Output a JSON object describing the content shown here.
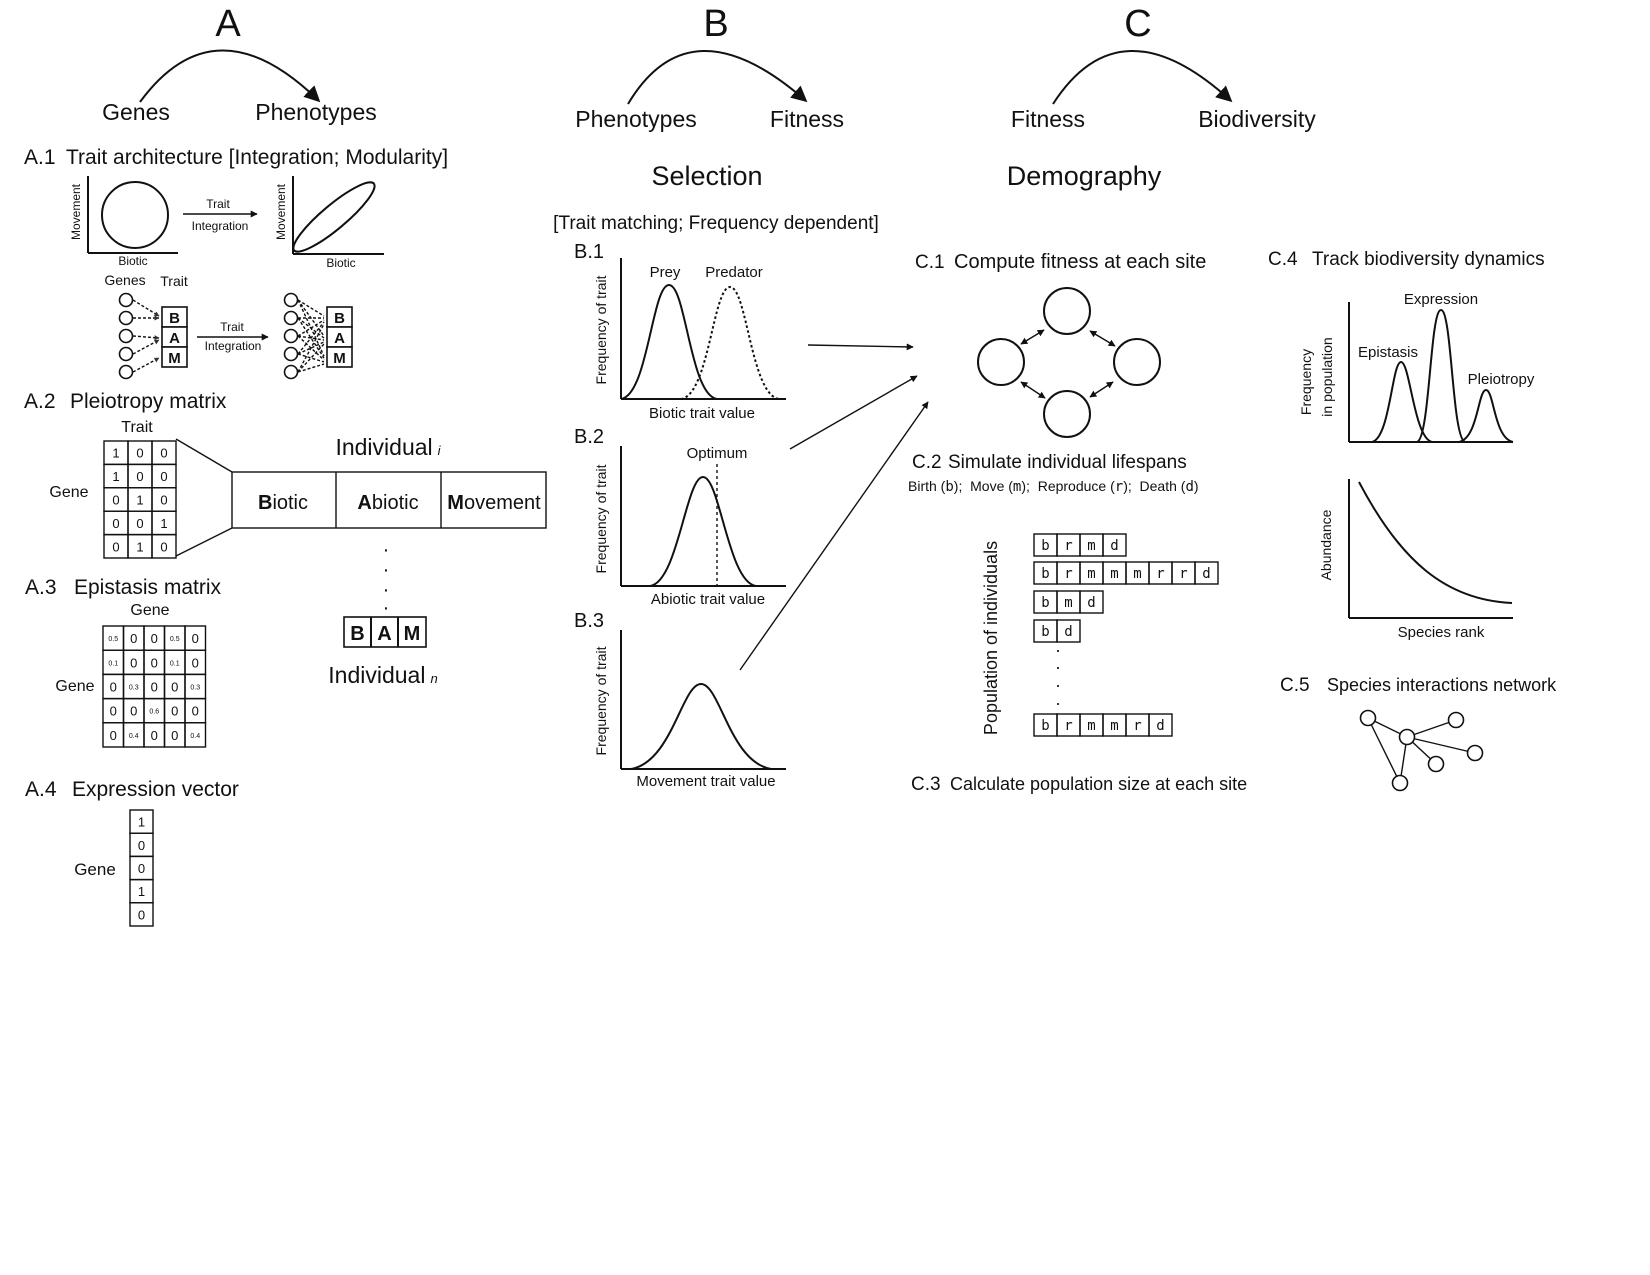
{
  "headers": {
    "A": {
      "letter": "A",
      "from": "Genes",
      "to": "Phenotypes"
    },
    "B": {
      "letter": "B",
      "from": "Phenotypes",
      "to": "Fitness",
      "process": "Selection",
      "bracket": "[Trait matching; Frequency dependent]"
    },
    "C": {
      "letter": "C",
      "from": "Fitness",
      "to": "Biodiversity",
      "process": "Demography"
    }
  },
  "A1": {
    "id": "A.1",
    "title": "Trait architecture [Integration; Modularity]",
    "ylabel": "Movement",
    "xlabel": "Biotic",
    "arrow_label_1": "Trait",
    "arrow_label_2": "Integration",
    "genes_label": "Genes",
    "trait_label": "Trait",
    "bam": [
      "B",
      "A",
      "M"
    ]
  },
  "A2": {
    "id": "A.2",
    "title": "Pleiotropy matrix",
    "col_label": "Trait",
    "row_label": "Gene",
    "matrix": [
      [
        "1",
        "0",
        "0"
      ],
      [
        "1",
        "0",
        "0"
      ],
      [
        "0",
        "1",
        "0"
      ],
      [
        "0",
        "0",
        "1"
      ],
      [
        "0",
        "1",
        "0"
      ]
    ],
    "individual_i": "Individual",
    "individual_i_sub": "i",
    "segments": [
      {
        "bold": "B",
        "rest": "iotic"
      },
      {
        "bold": "A",
        "rest": "biotic"
      },
      {
        "bold": "M",
        "rest": "ovement"
      }
    ],
    "dots": "·",
    "bam": [
      "B",
      "A",
      "M"
    ],
    "individual_n": "Individual",
    "individual_n_sub": "n"
  },
  "A3": {
    "id": "A.3",
    "title": "Epistasis matrix",
    "col_label": "Gene",
    "row_label": "Gene",
    "matrix": [
      [
        "0.5",
        "0",
        "0",
        "0.5",
        "0"
      ],
      [
        "0.1",
        "0",
        "0",
        "0.1",
        "0"
      ],
      [
        "0",
        "0.3",
        "0",
        "0",
        "0.3"
      ],
      [
        "0",
        "0",
        "0.6",
        "0",
        "0"
      ],
      [
        "0",
        "0.4",
        "0",
        "0",
        "0.4"
      ]
    ]
  },
  "A4": {
    "id": "A.4",
    "title": "Expression vector",
    "row_label": "Gene",
    "vector": [
      "1",
      "0",
      "0",
      "1",
      "0"
    ]
  },
  "B1": {
    "id": "B.1",
    "ylabel": "Frequency of trait",
    "xlabel": "Biotic trait value",
    "legend_left": "Prey",
    "legend_right": "Predator"
  },
  "B2": {
    "id": "B.2",
    "ylabel": "Frequency of trait",
    "xlabel": "Abiotic trait value",
    "annotation": "Optimum"
  },
  "B3": {
    "id": "B.3",
    "ylabel": "Frequency of trait",
    "xlabel": "Movement trait value"
  },
  "C1": {
    "id": "C.1",
    "title": "Compute fitness at each site"
  },
  "C2": {
    "id": "C.2",
    "title": "Simulate individual lifespans",
    "legend": [
      {
        "text": "Birth (",
        "code": "b",
        "end": "); "
      },
      {
        "text": "Move (",
        "code": "m",
        "end": "); "
      },
      {
        "text": "Reproduce (",
        "code": "r",
        "end": "); "
      },
      {
        "text": "Death (",
        "code": "d",
        "end": ")"
      }
    ],
    "ylabel": "Population of individuals",
    "rows": [
      [
        "b",
        "r",
        "m",
        "d"
      ],
      [
        "b",
        "r",
        "m",
        "m",
        "m",
        "r",
        "r",
        "d"
      ],
      [
        "b",
        "m",
        "d"
      ],
      [
        "b",
        "d"
      ],
      [
        "b",
        "r",
        "m",
        "m",
        "r",
        "d"
      ]
    ]
  },
  "C3": {
    "id": "C.3",
    "title": "Calculate population size at each site"
  },
  "C4": {
    "id": "C.4",
    "title": "Track biodiversity dynamics",
    "ylabel_1": "Frequency",
    "ylabel_2": "in population",
    "peaks": [
      "Epistasis",
      "Expression",
      "Pleiotropy"
    ],
    "rank_ylabel": "Abundance",
    "rank_xlabel": "Species rank"
  },
  "C5": {
    "id": "C.5",
    "title": "Species interactions network"
  }
}
